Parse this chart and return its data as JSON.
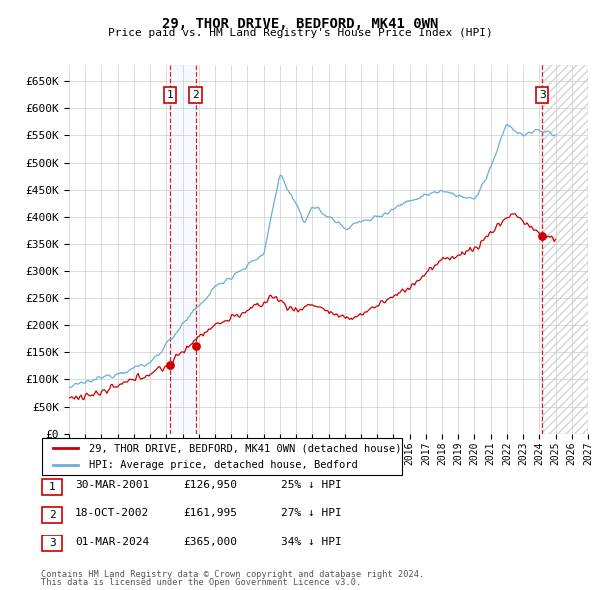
{
  "title": "29, THOR DRIVE, BEDFORD, MK41 0WN",
  "subtitle": "Price paid vs. HM Land Registry's House Price Index (HPI)",
  "legend_line1": "29, THOR DRIVE, BEDFORD, MK41 0WN (detached house)",
  "legend_line2": "HPI: Average price, detached house, Bedford",
  "footer1": "Contains HM Land Registry data © Crown copyright and database right 2024.",
  "footer2": "This data is licensed under the Open Government Licence v3.0.",
  "transactions": [
    {
      "id": 1,
      "date": "30-MAR-2001",
      "price": "£126,950",
      "pct": "25% ↓ HPI",
      "year": 2001.24
    },
    {
      "id": 2,
      "date": "18-OCT-2002",
      "price": "£161,995",
      "pct": "27% ↓ HPI",
      "year": 2002.8
    },
    {
      "id": 3,
      "date": "01-MAR-2024",
      "price": "£365,000",
      "pct": "34% ↓ HPI",
      "year": 2024.17
    }
  ],
  "hpi_color": "#6baed6",
  "price_color": "#cc0000",
  "ylim": [
    0,
    680000
  ],
  "yticks": [
    0,
    50000,
    100000,
    150000,
    200000,
    250000,
    300000,
    350000,
    400000,
    450000,
    500000,
    550000,
    600000,
    650000
  ],
  "xmin": 1995,
  "xmax": 2027
}
